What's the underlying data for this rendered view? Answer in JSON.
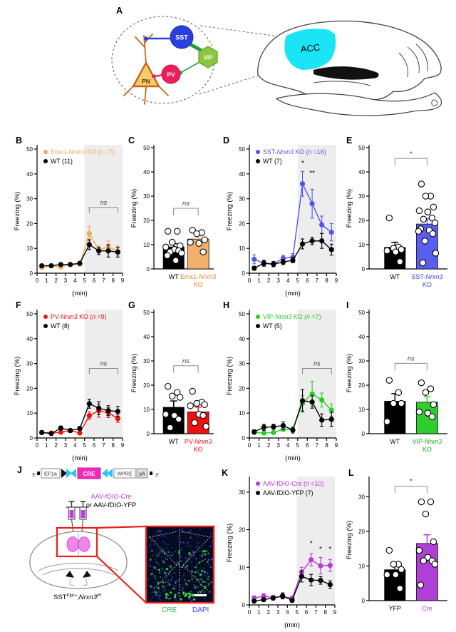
{
  "figure_bg": "#ffffff",
  "panel_labels": {
    "A": "A",
    "B": "B",
    "C": "C",
    "D": "D",
    "E": "E",
    "F": "F",
    "G": "G",
    "H": "H",
    "I": "I",
    "J": "J",
    "K": "K",
    "L": "L"
  },
  "panelA": {
    "pn_label": "PN",
    "sst_label": "SST",
    "vip_label": "VIP",
    "pv_label": "PV",
    "acc_label": "ACC",
    "colors": {
      "sst": "#2b3fe0",
      "vip": "#8cc63e",
      "vip_edge": "#649e27",
      "pv": "#ed1e5b",
      "pn_fill": "#fbcb6b",
      "pn_edge": "#c8651a",
      "acc": "#1ae4f5",
      "green_line": "#1f9e3c"
    }
  },
  "panelJ": {
    "construct": {
      "five_prime": "5'",
      "promoter": "EF1a",
      "gene": "CRE",
      "wpre": "WPRE",
      "pa": "pA",
      "three_prime": "3'"
    },
    "virus_cre": "AAV-fDIO-Cre",
    "virus_yfp": "or AAV-fDIO-YFP",
    "genotype": {
      "base": "SST",
      "sup1": "Flp/+",
      "sep": ";",
      "gene": "Nrxn3",
      "sup2": "f/f"
    },
    "cre_stain": "CRE",
    "dapi_stain": "DAPI",
    "colors": {
      "virus": "#c13be0",
      "cre_box": "#f32bbd",
      "fdio_arrow": "#29c4f0",
      "cre_text": "#2dbe4e",
      "dapi_text": "#3a45f0",
      "injection": "#ef86ea",
      "wedge": "#e8211c"
    }
  },
  "chart_data": [
    {
      "id": "B",
      "type": "line",
      "ylabel": "Freezing (%)",
      "xlabel": "(min)",
      "ylim": [
        0,
        50
      ],
      "yticks": [
        0,
        10,
        20,
        30,
        40,
        50
      ],
      "xlim": [
        0,
        9
      ],
      "xticks": [
        0,
        1,
        2,
        3,
        4,
        5,
        6,
        7,
        8,
        9
      ],
      "shade": [
        5,
        9
      ],
      "x": [
        0.5,
        1.5,
        2.5,
        3.5,
        4.5,
        5.5,
        6.5,
        7.5,
        8.5
      ],
      "series": [
        {
          "name": "Emx1-*Nrxn3* KO (*n* =7)",
          "color": "#f2a95c",
          "values": [
            2.3,
            3,
            2.5,
            3.5,
            3.5,
            16,
            9.5,
            10.5,
            9
          ],
          "sem": [
            0.5,
            0.5,
            0.5,
            0.5,
            0.5,
            3,
            1.5,
            2.5,
            2
          ]
        },
        {
          "name": "WT (11)",
          "color": "#000000",
          "values": [
            3,
            3,
            3.5,
            3.5,
            4,
            11.5,
            9,
            9,
            8.5
          ],
          "sem": [
            0.5,
            0.5,
            0.5,
            0.5,
            0.5,
            2,
            1.5,
            2.5,
            2
          ]
        }
      ],
      "annotations": [
        {
          "type": "bracket",
          "x1": 5.5,
          "x2": 8.5,
          "y": 26.5,
          "label": "*ns*"
        }
      ]
    },
    {
      "id": "C",
      "type": "bar",
      "ylabel": "Freezing (%)",
      "ylim": [
        0,
        50
      ],
      "yticks": [
        0,
        10,
        20,
        30,
        40,
        50
      ],
      "categories": [
        {
          "label": "WT",
          "color": "#000000"
        },
        {
          "label": "Emx1-*Nrxn3*\nKO",
          "color": "#e08a30"
        }
      ],
      "values": [
        9.2,
        12.3
      ],
      "sem": [
        1.2,
        1.3
      ],
      "bar_colors": [
        "#000000",
        "#f2b06a"
      ],
      "dots": [
        [
          15.5,
          15.5,
          11,
          9.5,
          9,
          8,
          7.5,
          7,
          6.5,
          5.5,
          3.5
        ],
        [
          16,
          15,
          14.5,
          12,
          11,
          10.5,
          7
        ]
      ],
      "bracket": {
        "label": "*ns*",
        "y": 25
      }
    },
    {
      "id": "D",
      "type": "line",
      "ylabel": "Freezing (%)",
      "xlabel": "(min)",
      "ylim": [
        0,
        50
      ],
      "yticks": [
        0,
        10,
        20,
        30,
        40,
        50
      ],
      "xlim": [
        0,
        9
      ],
      "xticks": [
        0,
        1,
        2,
        3,
        4,
        5,
        6,
        7,
        8,
        9
      ],
      "shade": [
        5,
        9
      ],
      "x": [
        0.5,
        1.5,
        2.5,
        3.5,
        4.5,
        5.5,
        6.5,
        7.5,
        8.5
      ],
      "series": [
        {
          "name": "SST-*Nrxn3* KO (*n* =16)",
          "color": "#5056eb",
          "values": [
            5.6,
            4,
            3.8,
            6,
            6.4,
            36,
            28,
            19.5,
            16.5
          ],
          "sem": [
            1.8,
            1,
            1,
            1.2,
            1.5,
            5,
            5.8,
            3.5,
            3.5
          ]
        },
        {
          "name": "WT (7)",
          "color": "#000000",
          "values": [
            2,
            4,
            3.6,
            4.5,
            5.2,
            11.8,
            13,
            13,
            9.5
          ],
          "sem": [
            0.8,
            1.2,
            1,
            1,
            1,
            2,
            1.5,
            3,
            2.2
          ]
        }
      ],
      "annotations": [
        {
          "type": "stars",
          "x": 5.5,
          "y": 43.5,
          "label": "***"
        },
        {
          "type": "stars",
          "x": 6.5,
          "y": 39.5,
          "label": "**"
        }
      ]
    },
    {
      "id": "E",
      "type": "bar",
      "ylabel": "Freezing (%)",
      "ylim": [
        0,
        50
      ],
      "yticks": [
        0,
        10,
        20,
        30,
        40,
        50
      ],
      "categories": [
        {
          "label": "WT",
          "color": "#000000"
        },
        {
          "label": "SST-*Nrxn3*\nKO",
          "color": "#3a45f0"
        }
      ],
      "values": [
        9,
        18.5
      ],
      "sem": [
        2,
        2.2
      ],
      "bar_colors": [
        "#000000",
        "#5a5ef0"
      ],
      "dots": [
        [
          21,
          9,
          8.5,
          8,
          7.5,
          7,
          3
        ],
        [
          35,
          30,
          30,
          25.5,
          24,
          23.5,
          21,
          20.5,
          19,
          16.5,
          16,
          15.5,
          14.5,
          11.5,
          6.5,
          2.5
        ]
      ],
      "bracket": {
        "label": "*",
        "y": 45.5
      }
    },
    {
      "id": "F",
      "type": "line",
      "ylabel": "Freezing (%)",
      "xlabel": "(min)",
      "ylim": [
        0,
        50
      ],
      "yticks": [
        0,
        10,
        20,
        30,
        40,
        50
      ],
      "xlim": [
        0,
        9
      ],
      "xticks": [
        0,
        1,
        2,
        3,
        4,
        5,
        6,
        7,
        8,
        9
      ],
      "shade": [
        5,
        9
      ],
      "x": [
        0.5,
        1.5,
        2.5,
        3.5,
        4.5,
        5.5,
        6.5,
        7.5,
        8.5
      ],
      "series": [
        {
          "name": "PV-*Nrxn3* KO (*n* =9)",
          "color": "#ee1111",
          "values": [
            2.2,
            2,
            2.3,
            3,
            2,
            9,
            11,
            10.2,
            7.8
          ],
          "sem": [
            0.6,
            0.5,
            0.6,
            0.7,
            0.5,
            1.5,
            2.6,
            2,
            1.5
          ]
        },
        {
          "name": "WT (8)",
          "color": "#000000",
          "values": [
            2.2,
            1.8,
            4,
            3,
            3.8,
            13.8,
            12,
            11,
            10.7
          ],
          "sem": [
            0.6,
            0.5,
            0.8,
            0.7,
            0.8,
            1.8,
            2.6,
            2,
            2
          ]
        }
      ],
      "annotations": [
        {
          "type": "bracket",
          "x1": 5.5,
          "x2": 8.5,
          "y": 28,
          "label": "*ns*"
        }
      ]
    },
    {
      "id": "G",
      "type": "bar",
      "ylabel": "Freezing (%)",
      "ylim": [
        0,
        50
      ],
      "yticks": [
        0,
        10,
        20,
        30,
        40,
        50
      ],
      "categories": [
        {
          "label": "WT",
          "color": "#000000"
        },
        {
          "label": "PV-*Nrxn3*\nKO",
          "color": "#ee1111"
        }
      ],
      "values": [
        11,
        9
      ],
      "sem": [
        2.5,
        2
      ],
      "bar_colors": [
        "#000000",
        "#ee1111"
      ],
      "dots": [
        [
          19.5,
          17,
          15.5,
          15,
          8,
          7.5,
          6,
          2.5
        ],
        [
          17.5,
          13,
          12.5,
          12,
          11.5,
          8,
          7.5,
          4.5,
          3
        ]
      ],
      "bracket": {
        "label": "*ns*",
        "y": 28
      }
    },
    {
      "id": "H",
      "type": "line",
      "ylabel": "Freezing (%)",
      "xlabel": "(min)",
      "ylim": [
        0,
        50
      ],
      "yticks": [
        0,
        10,
        20,
        30,
        40,
        50
      ],
      "xlim": [
        0,
        9
      ],
      "xticks": [
        0,
        1,
        2,
        3,
        4,
        5,
        6,
        7,
        8,
        9
      ],
      "shade": [
        5,
        9
      ],
      "x": [
        0.5,
        1.5,
        2.5,
        3.5,
        4.5,
        5.5,
        6.5,
        7.5,
        8.5
      ],
      "series": [
        {
          "name": "VIP-*Nrxn3* KO (*n* =7)",
          "color": "#25cd25",
          "values": [
            2.2,
            2,
            2.2,
            3.5,
            3.3,
            14,
            17.8,
            15.3,
            11.2
          ],
          "sem": [
            0.7,
            0.5,
            0.6,
            0.8,
            0.8,
            3,
            5,
            2.8,
            2.5
          ]
        },
        {
          "name": "WT (5)",
          "color": "#000000",
          "values": [
            2.5,
            4.3,
            4.5,
            5,
            3.2,
            15,
            14.5,
            7.2,
            7.5
          ],
          "sem": [
            0.8,
            1.2,
            1,
            1.5,
            1.2,
            4.5,
            2.5,
            2.5,
            2.8
          ]
        }
      ],
      "annotations": [
        {
          "type": "bracket",
          "x1": 5.5,
          "x2": 8.5,
          "y": 28,
          "label": "*ns*"
        }
      ]
    },
    {
      "id": "I",
      "type": "bar",
      "ylabel": "Freezing (%)",
      "ylim": [
        0,
        50
      ],
      "yticks": [
        0,
        10,
        20,
        30,
        40,
        50
      ],
      "categories": [
        {
          "label": "WT",
          "color": "#000000"
        },
        {
          "label": "VIP-*Nrxn3*\nKO",
          "color": "#12b212"
        }
      ],
      "values": [
        13.5,
        13
      ],
      "sem": [
        3,
        2.2
      ],
      "bar_colors": [
        "#000000",
        "#2ecc2e"
      ],
      "dots": [
        [
          22,
          17,
          12.5,
          12.5,
          5
        ],
        [
          21,
          18.5,
          17,
          12,
          9,
          8.5,
          7
        ]
      ],
      "bracket": {
        "label": "*ns*",
        "y": 29
      }
    },
    {
      "id": "K",
      "type": "line",
      "ylabel": "Freezing (%)",
      "xlabel": "(min)",
      "ylim": [
        0,
        33
      ],
      "yticks": [
        0,
        10,
        20,
        30
      ],
      "xlim": [
        0,
        9
      ],
      "xticks": [
        0,
        1,
        2,
        3,
        4,
        5,
        6,
        7,
        8,
        9
      ],
      "shade": [
        5,
        9
      ],
      "x": [
        0.5,
        1.5,
        2.5,
        3.5,
        4.5,
        5.5,
        6.5,
        7.5,
        8.5
      ],
      "series": [
        {
          "name": "AAV-fDIO-Cre (*n* =10)",
          "color": "#b93ad9",
          "values": [
            1.8,
            2.3,
            2,
            2.2,
            1.8,
            8.7,
            12,
            10.4,
            10.5
          ],
          "sem": [
            0.6,
            0.7,
            0.5,
            0.6,
            0.5,
            1.3,
            1.6,
            2.2,
            1.6
          ]
        },
        {
          "name": "AAV-fDIO-YFP (7)",
          "color": "#000000",
          "values": [
            1,
            1.4,
            1.8,
            2.4,
            1.2,
            7.6,
            6.6,
            6.5,
            5.4
          ],
          "sem": [
            0.4,
            0.5,
            0.5,
            0.8,
            0.5,
            1.5,
            1.5,
            1,
            1
          ]
        }
      ],
      "annotations": [
        {
          "type": "stars",
          "x": 6.5,
          "y": 15.8,
          "label": "*"
        },
        {
          "type": "stars",
          "x": 7.5,
          "y": 14.3,
          "label": "*"
        },
        {
          "type": "stars",
          "x": 8.5,
          "y": 14.3,
          "label": "*"
        }
      ]
    },
    {
      "id": "L",
      "type": "bar",
      "ylabel": "Freezing (%)",
      "ylim": [
        0,
        35
      ],
      "yticks": [
        0,
        10,
        20,
        30
      ],
      "categories": [
        {
          "label": "YFP",
          "color": "#000000"
        },
        {
          "label": "Cre",
          "color": "#b93ad9"
        }
      ],
      "values": [
        9,
        16.5
      ],
      "sem": [
        1.5,
        2.5
      ],
      "bar_colors": [
        "#000000",
        "#b03fd6"
      ],
      "dots": [
        [
          14.5,
          10.5,
          10.5,
          9,
          7.5,
          7.5,
          3.5
        ],
        [
          28.5,
          28.5,
          25,
          17,
          14.5,
          12.5,
          11.5,
          11.5,
          10.5,
          4.5
        ]
      ],
      "bracket": {
        "label": "*",
        "y": 33
      }
    }
  ]
}
